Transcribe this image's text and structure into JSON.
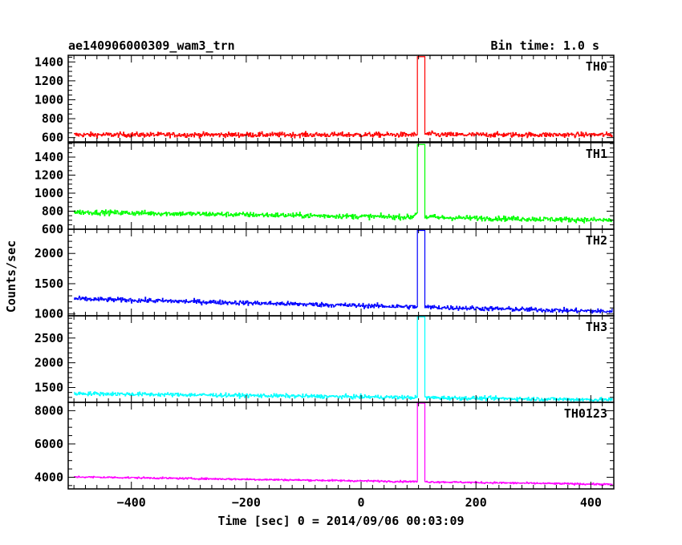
{
  "chart_data": {
    "type": "line",
    "title": "ae140906000309_wam3_trn",
    "subtitle": "Bin time: 1.0 s",
    "xlabel": "Time [sec] 0 = 2014/09/06 00:03:09",
    "ylabel": "Counts/sec",
    "xlim": [
      -510,
      440
    ],
    "xticks": [
      -400,
      -200,
      0,
      200,
      400
    ],
    "burst": {
      "start": 98,
      "end": 110
    },
    "series": [
      {
        "name": "TH0",
        "color": "#ff0000",
        "ylim": [
          555,
          1470
        ],
        "yticks": [
          600,
          800,
          1000,
          1200,
          1400
        ],
        "base_start": 630,
        "base_end": 630,
        "peak": 1455,
        "noise": 26,
        "post_offset": 8,
        "pre_dip": 0
      },
      {
        "name": "TH1",
        "color": "#00ff00",
        "ylim": [
          600,
          1560
        ],
        "yticks": [
          600,
          800,
          1000,
          1200,
          1400
        ],
        "base_start": 790,
        "base_end": 700,
        "peak": 1540,
        "noise": 28,
        "post_offset": 5,
        "pre_dip": 60
      },
      {
        "name": "TH2",
        "color": "#0000ff",
        "ylim": [
          970,
          2400
        ],
        "yticks": [
          1000,
          1500,
          2000
        ],
        "base_start": 1250,
        "base_end": 1040,
        "peak": 2380,
        "noise": 38,
        "post_offset": 0,
        "pre_dip": 0
      },
      {
        "name": "TH3",
        "color": "#00ffff",
        "ylim": [
          1200,
          2950
        ],
        "yticks": [
          1500,
          2000,
          2500
        ],
        "base_start": 1380,
        "base_end": 1250,
        "peak": 2930,
        "noise": 40,
        "post_offset": 0,
        "pre_dip": 0
      },
      {
        "name": "TH0123",
        "color": "#ff00ff",
        "ylim": [
          3300,
          8500
        ],
        "yticks": [
          4000,
          6000,
          8000
        ],
        "base_start": 4020,
        "base_end": 3570,
        "peak": 8450,
        "noise": 55,
        "post_offset": 0,
        "pre_dip": 0
      }
    ]
  }
}
